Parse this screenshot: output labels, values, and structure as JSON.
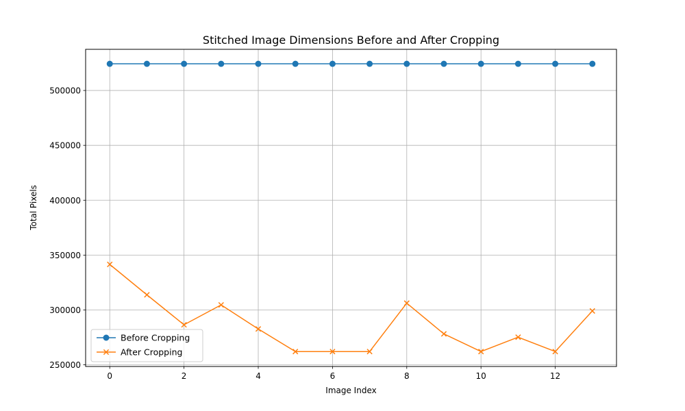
{
  "chart_data": {
    "type": "line",
    "title": "Stitched Image Dimensions Before and After Cropping",
    "xlabel": "Image Index",
    "ylabel": "Total Pixels",
    "x": [
      0,
      1,
      2,
      3,
      4,
      5,
      6,
      7,
      8,
      9,
      10,
      11,
      12,
      13
    ],
    "xlim": [
      -0.65,
      13.65
    ],
    "ylim": [
      248500,
      537500
    ],
    "xticks": [
      0,
      2,
      4,
      6,
      8,
      10,
      12
    ],
    "yticks": [
      250000,
      300000,
      350000,
      400000,
      450000,
      500000
    ],
    "grid": true,
    "legend_position": "lower-left",
    "series": [
      {
        "name": "Before Cropping",
        "marker": "circle",
        "color": "#1f77b4",
        "values": [
          524288,
          524288,
          524288,
          524288,
          524288,
          524288,
          524288,
          524288,
          524288,
          524288,
          524288,
          524288,
          524288,
          524288
        ]
      },
      {
        "name": "After Cropping",
        "marker": "x",
        "color": "#ff7f0e",
        "values": [
          341500,
          313800,
          286500,
          304600,
          282700,
          262100,
          262100,
          262100,
          306200,
          278200,
          262100,
          275200,
          262100,
          299100
        ]
      }
    ]
  }
}
